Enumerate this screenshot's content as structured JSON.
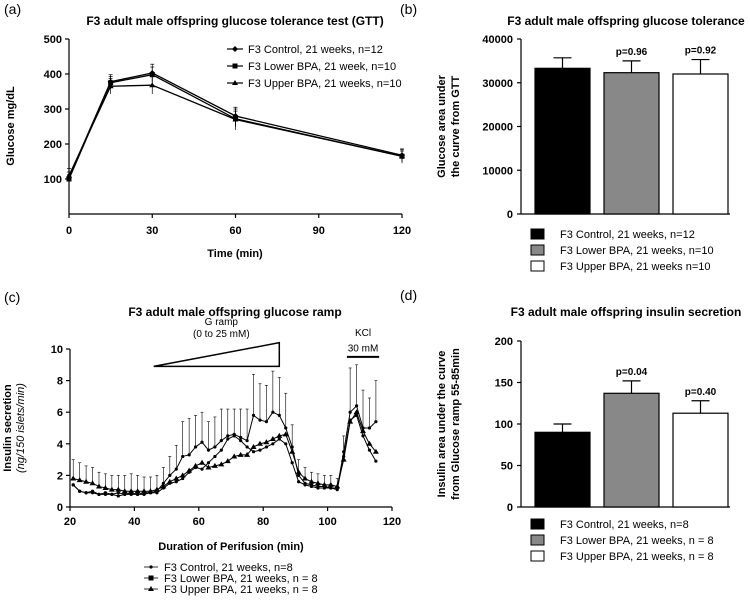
{
  "chart_data": [
    {
      "panel": "(a)",
      "type": "line",
      "title": "F3 adult male offspring glucose tolerance test (GTT)",
      "xlabel": "Time (min)",
      "ylabel": "Glucose mg/dL",
      "xlim": [
        0,
        120
      ],
      "ylim": [
        0,
        500
      ],
      "xticks": [
        0,
        30,
        60,
        90,
        120
      ],
      "yticks": [
        100,
        200,
        300,
        400,
        500
      ],
      "legend": "top-right",
      "x": [
        0,
        15,
        30,
        60,
        120
      ],
      "series": [
        {
          "name": "F3 Control, 21 weeks, n=12",
          "marker": "diamond",
          "values": [
            105,
            378,
            403,
            280,
            168
          ],
          "err": [
            15,
            20,
            25,
            25,
            18
          ]
        },
        {
          "name": "F3 Lower BPA, 21 week, n=10",
          "marker": "square",
          "values": [
            100,
            375,
            398,
            272,
            165
          ],
          "err": [
            12,
            18,
            22,
            22,
            15
          ]
        },
        {
          "name": "F3 Upper BPA, 21 weeks, n=10",
          "marker": "triangle",
          "values": [
            110,
            365,
            368,
            270,
            165
          ],
          "err": [
            20,
            22,
            25,
            30,
            20
          ]
        }
      ]
    },
    {
      "panel": "(b)",
      "type": "bar",
      "title": "F3 adult male offspring glucose tolerance",
      "ylabel": [
        "Glucose area under",
        "the curve from GTT"
      ],
      "ylim": [
        0,
        40000
      ],
      "yticks": [
        0,
        10000,
        20000,
        30000,
        40000
      ],
      "categories": [
        "F3 Control, 21 weeks, n=12",
        "F3 Lower BPA, 21 weeks, n=10",
        "F3 Upper BPA, 21 weeks n=10"
      ],
      "values": [
        33300,
        32300,
        32000
      ],
      "err": [
        2400,
        2700,
        3300
      ],
      "labels": [
        "",
        "p=0.96",
        "p=0.92"
      ],
      "colors": [
        "#000000",
        "#888888",
        "#ffffff"
      ],
      "legend": "bottom"
    },
    {
      "panel": "(c)",
      "type": "line",
      "title": "F3 adult male offspring glucose ramp",
      "xlabel": "Duration of Perifusion (min)",
      "ylabel": [
        "Insulin secretion",
        "(ng/150 islets/min)"
      ],
      "xlim": [
        20,
        120
      ],
      "ylim": [
        0,
        10
      ],
      "xticks": [
        20,
        40,
        60,
        80,
        100,
        120
      ],
      "yticks": [
        0,
        2,
        4,
        6,
        8,
        10
      ],
      "annotations": {
        "ramp": [
          "G ramp",
          "(0 to 25 mM)"
        ],
        "kcl": [
          "KCl",
          "30 mM"
        ]
      },
      "legend": "bottom",
      "x": [
        21,
        23,
        25,
        27,
        29,
        31,
        33,
        35,
        37,
        39,
        41,
        43,
        45,
        47,
        49,
        51,
        53,
        55,
        57,
        59,
        61,
        63,
        65,
        67,
        69,
        71,
        73,
        75,
        77,
        79,
        81,
        83,
        85,
        87,
        89,
        91,
        93,
        95,
        97,
        99,
        101,
        103,
        105,
        107,
        109,
        111,
        113,
        115
      ],
      "err": [
        1.2,
        1.1,
        1.0,
        1.0,
        0.9,
        0.9,
        0.9,
        0.9,
        1.0,
        1.1,
        1.0,
        0.9,
        0.9,
        0.9,
        1.0,
        1.2,
        1.5,
        2.2,
        2.3,
        2.0,
        1.9,
        1.8,
        1.9,
        2.0,
        1.7,
        1.6,
        1.8,
        2.0,
        2.6,
        2.3,
        2.3,
        2.6,
        2.4,
        2.2,
        1.4,
        0.8,
        0.7,
        0.6,
        0.6,
        0.6,
        0.6,
        0.5,
        1.0,
        2.8,
        2.6,
        2.4,
        1.9,
        2.6
      ],
      "series": [
        {
          "name": "F3 Control, 21 weeks, n=8",
          "marker": "dot",
          "values": [
            1.4,
            1.0,
            0.9,
            0.9,
            0.8,
            0.8,
            0.8,
            0.7,
            0.8,
            0.8,
            0.8,
            0.8,
            0.9,
            0.9,
            1.2,
            1.5,
            1.6,
            1.8,
            2.2,
            2.5,
            2.4,
            2.8,
            3.2,
            3.6,
            4.3,
            4.5,
            4.2,
            3.8,
            3.5,
            3.6,
            3.8,
            4.0,
            4.3,
            4.0,
            2.8,
            1.6,
            1.4,
            1.3,
            1.2,
            1.2,
            1.2,
            1.1,
            3.2,
            5.5,
            5.8,
            4.5,
            3.6,
            2.9
          ]
        },
        {
          "name": "F3 Lower BPA, 21 weeks, n = 8",
          "marker": "square",
          "values": [
            1.4,
            1.0,
            0.9,
            1.0,
            0.8,
            0.9,
            0.8,
            0.9,
            0.8,
            0.9,
            0.8,
            0.9,
            0.9,
            1.0,
            1.5,
            2.0,
            2.4,
            3.2,
            3.3,
            3.8,
            4.1,
            3.6,
            3.8,
            4.2,
            4.5,
            4.6,
            4.4,
            4.2,
            5.8,
            5.5,
            5.4,
            6.0,
            5.8,
            5.0,
            3.8,
            2.0,
            1.5,
            1.4,
            1.3,
            1.3,
            1.2,
            1.2,
            3.5,
            6.0,
            6.4,
            5.0,
            5.0,
            5.4
          ]
        },
        {
          "name": "F3 Upper BPA, 21 weeks, n = 8",
          "marker": "triangle",
          "values": [
            1.8,
            1.7,
            1.6,
            1.5,
            1.3,
            1.2,
            1.1,
            1.1,
            1.0,
            1.0,
            1.0,
            1.0,
            1.0,
            1.1,
            1.3,
            1.6,
            1.8,
            2.0,
            2.3,
            2.6,
            2.8,
            2.5,
            2.6,
            2.7,
            2.9,
            3.2,
            3.3,
            3.3,
            3.8,
            4.0,
            4.1,
            4.3,
            4.5,
            4.6,
            3.5,
            2.2,
            1.8,
            1.6,
            1.5,
            1.4,
            1.4,
            1.3,
            3.0,
            5.4,
            6.0,
            4.8,
            4.0,
            3.5
          ]
        }
      ]
    },
    {
      "panel": "(d)",
      "type": "bar",
      "title": "F3 adult male offspring insulin secretion",
      "ylabel": [
        "Insulin area under the curve",
        "from Glucose ramp 55-85min"
      ],
      "ylim": [
        0,
        200
      ],
      "yticks": [
        0,
        50,
        100,
        150,
        200
      ],
      "categories": [
        "F3 Control, 21 weeks, n=8",
        "F3 Lower BPA, 21 weeks, n = 8",
        "F3 Upper BPA, 21 weeks, n = 8"
      ],
      "values": [
        90,
        137,
        113
      ],
      "err": [
        10,
        15,
        15
      ],
      "labels": [
        "",
        "p=0.04",
        "p=0.40"
      ],
      "colors": [
        "#000000",
        "#888888",
        "#ffffff"
      ],
      "legend": "bottom"
    }
  ]
}
